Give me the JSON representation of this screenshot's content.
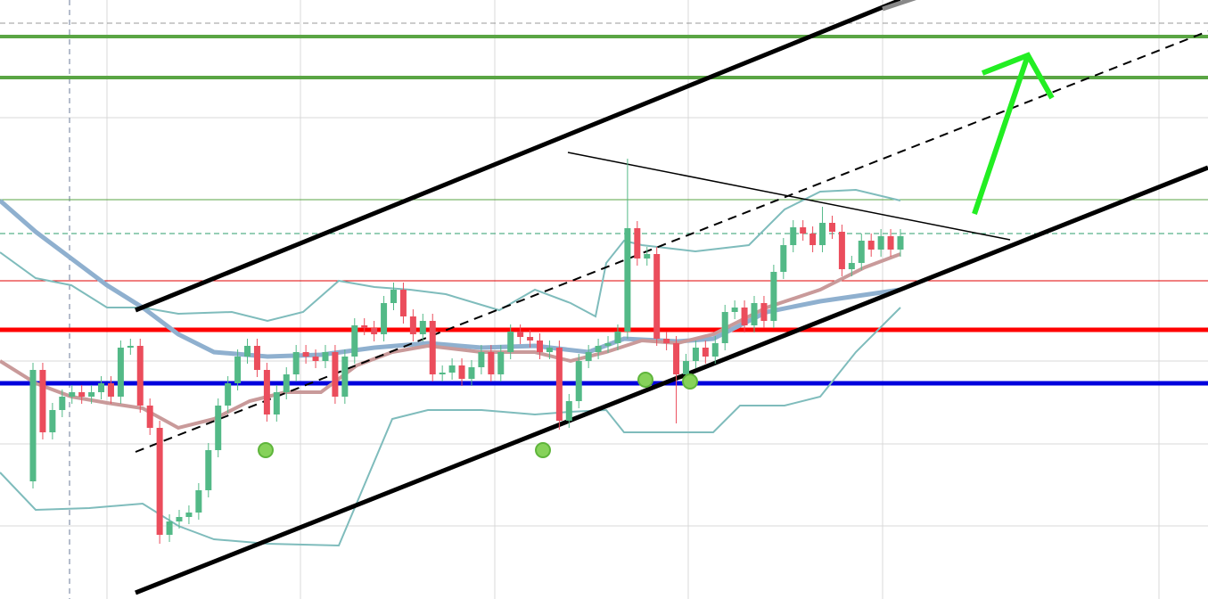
{
  "chart_data": {
    "type": "candlestick",
    "ylim": [
      0,
      672
    ],
    "up_color": "#53b987",
    "down_color": "#eb4d5c",
    "open": [
      132,
      257,
      187,
      212,
      227,
      232,
      227,
      232,
      242,
      227,
      282,
      284,
      217,
      192,
      72,
      87,
      92,
      97,
      122,
      167,
      217,
      242,
      272,
      284,
      257,
      207,
      232,
      252,
      277,
      272,
      267,
      277,
      227,
      272,
      307,
      304,
      297,
      332,
      347,
      317,
      297,
      312,
      252,
      254,
      262,
      247,
      260,
      277,
      252,
      277,
      300,
      294,
      290,
      277,
      282,
      200,
      222,
      267,
      277,
      284,
      287,
      300,
      416,
      382,
      387,
      292,
      287,
      252,
      267,
      282,
      272,
      287,
      322,
      327,
      307,
      332,
      312,
      367,
      397,
      417,
      410,
      397,
      422,
      412,
      370,
      377,
      402,
      392,
      407,
      392
    ],
    "high": [
      265,
      265,
      220,
      235,
      240,
      240,
      240,
      250,
      250,
      290,
      292,
      292,
      225,
      200,
      95,
      100,
      105,
      130,
      175,
      225,
      250,
      280,
      292,
      292,
      265,
      240,
      260,
      285,
      285,
      280,
      285,
      285,
      280,
      315,
      315,
      312,
      340,
      355,
      355,
      325,
      320,
      320,
      262,
      270,
      270,
      268,
      285,
      285,
      285,
      308,
      308,
      302,
      298,
      290,
      290,
      230,
      275,
      285,
      292,
      295,
      308,
      494,
      424,
      395,
      395,
      300,
      295,
      275,
      290,
      290,
      295,
      330,
      335,
      335,
      340,
      340,
      375,
      405,
      425,
      425,
      418,
      440,
      430,
      420,
      385,
      410,
      410,
      415,
      415,
      415
    ],
    "low": [
      124,
      179,
      179,
      204,
      219,
      219,
      219,
      224,
      219,
      219,
      274,
      209,
      184,
      62,
      64,
      79,
      84,
      89,
      114,
      159,
      209,
      234,
      264,
      249,
      199,
      199,
      224,
      244,
      264,
      259,
      259,
      219,
      219,
      264,
      296,
      289,
      289,
      324,
      309,
      289,
      289,
      244,
      244,
      246,
      239,
      239,
      252,
      244,
      244,
      269,
      286,
      282,
      269,
      269,
      190,
      192,
      214,
      259,
      269,
      276,
      279,
      292,
      374,
      374,
      284,
      279,
      197,
      244,
      259,
      264,
      264,
      279,
      314,
      299,
      299,
      304,
      304,
      359,
      389,
      402,
      389,
      389,
      404,
      362,
      362,
      369,
      384,
      384,
      384,
      384
    ],
    "close": [
      257,
      187,
      212,
      227,
      232,
      227,
      232,
      242,
      227,
      282,
      284,
      217,
      192,
      72,
      87,
      92,
      97,
      122,
      167,
      217,
      242,
      272,
      284,
      257,
      207,
      232,
      252,
      277,
      272,
      267,
      277,
      227,
      272,
      307,
      304,
      297,
      332,
      347,
      317,
      297,
      312,
      252,
      254,
      262,
      247,
      260,
      277,
      252,
      277,
      300,
      294,
      290,
      277,
      282,
      200,
      222,
      267,
      277,
      284,
      287,
      300,
      416,
      382,
      387,
      292,
      287,
      252,
      267,
      282,
      272,
      287,
      322,
      327,
      307,
      332,
      312,
      367,
      397,
      417,
      410,
      397,
      422,
      412,
      370,
      377,
      402,
      392,
      407,
      392,
      407
    ],
    "hlines": [
      {
        "value": 646,
        "color": "#999999",
        "width": 1,
        "dash": true
      },
      {
        "value": 631,
        "color": "#5aa544",
        "width": 4,
        "dash": false
      },
      {
        "value": 585,
        "color": "#5aa544",
        "width": 4,
        "dash": false
      },
      {
        "value": 448,
        "color": "#5aa544",
        "width": 1,
        "dash": false
      },
      {
        "value": 410,
        "color": "#2e9c6e",
        "width": 1,
        "dash": true
      },
      {
        "value": 357,
        "color": "#e00000",
        "width": 1,
        "dash": false
      },
      {
        "value": 302,
        "color": "#ff0000",
        "width": 5,
        "dash": false
      },
      {
        "value": 242,
        "color": "#0000dd",
        "width": 5,
        "dash": false
      }
    ]
  }
}
